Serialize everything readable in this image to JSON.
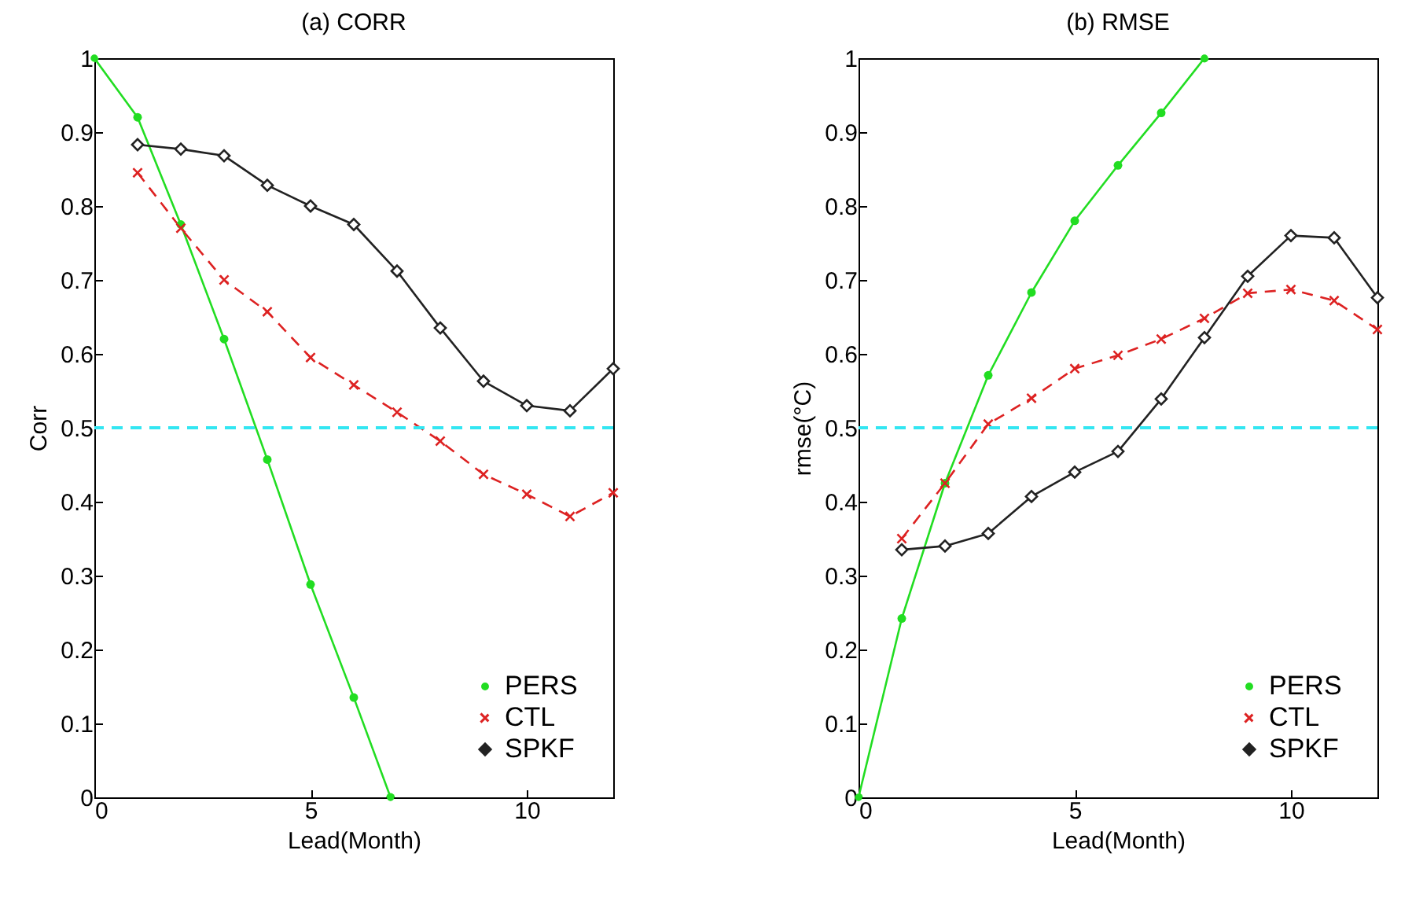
{
  "chart_data": [
    {
      "type": "line",
      "title": "(a) CORR",
      "xlabel": "Lead(Month)",
      "ylabel": "Corr",
      "x": [
        1,
        2,
        3,
        4,
        5,
        6,
        7,
        8,
        9,
        10,
        11,
        12
      ],
      "xlim": [
        0,
        12
      ],
      "xticks": [
        0,
        5,
        10
      ],
      "ylim": [
        0,
        1
      ],
      "yticks": [
        0,
        0.1,
        0.2,
        0.3,
        0.4,
        0.5,
        0.6,
        0.7,
        0.8,
        0.9,
        1
      ],
      "grid": false,
      "legend": "bottom right",
      "ref_lines": [
        {
          "axis": "y",
          "value": 0.5,
          "color": "#33e6f2",
          "line_style": "dashed"
        }
      ],
      "series": [
        {
          "name": "PERS",
          "color": "#22dd22",
          "marker": "circle",
          "line_style": "solid",
          "x": [
            0,
            1,
            2,
            3,
            4,
            5,
            6,
            6.85
          ],
          "values": [
            1,
            0.92,
            0.775,
            0.62,
            0.457,
            0.288,
            0.135,
            0
          ]
        },
        {
          "name": "CTL",
          "color": "#dd2222",
          "marker": "cross",
          "line_style": "dashed",
          "values": [
            0.845,
            0.77,
            0.7,
            0.657,
            0.595,
            0.558,
            0.521,
            0.482,
            0.437,
            0.41,
            0.38,
            0.412
          ]
        },
        {
          "name": "SPKF",
          "color": "#222222",
          "marker": "diamond",
          "line_style": "solid",
          "values": [
            0.883,
            0.877,
            0.868,
            0.828,
            0.8,
            0.775,
            0.712,
            0.635,
            0.563,
            0.53,
            0.523,
            0.58
          ]
        }
      ]
    },
    {
      "type": "line",
      "title": "(b) RMSE",
      "xlabel": "Lead(Month)",
      "ylabel": "rmse(°C)",
      "x": [
        1,
        2,
        3,
        4,
        5,
        6,
        7,
        8,
        9,
        10,
        11,
        12
      ],
      "xlim": [
        0,
        12
      ],
      "xticks": [
        0,
        5,
        10
      ],
      "ylim": [
        0,
        1
      ],
      "yticks": [
        0,
        0.1,
        0.2,
        0.3,
        0.4,
        0.5,
        0.6,
        0.7,
        0.8,
        0.9,
        1
      ],
      "grid": false,
      "legend": "bottom right",
      "ref_lines": [
        {
          "axis": "y",
          "value": 0.5,
          "color": "#33e6f2",
          "line_style": "dashed"
        }
      ],
      "series": [
        {
          "name": "PERS",
          "color": "#22dd22",
          "marker": "circle",
          "line_style": "solid",
          "x": [
            0,
            1,
            2,
            3,
            4,
            5,
            6,
            7,
            8
          ],
          "values": [
            0,
            0.242,
            0.425,
            0.571,
            0.683,
            0.78,
            0.855,
            0.926,
            1
          ]
        },
        {
          "name": "CTL",
          "color": "#dd2222",
          "marker": "cross",
          "line_style": "dashed",
          "values": [
            0.35,
            0.425,
            0.505,
            0.54,
            0.58,
            0.598,
            0.62,
            0.648,
            0.682,
            0.687,
            0.672,
            0.633
          ]
        },
        {
          "name": "SPKF",
          "color": "#222222",
          "marker": "diamond",
          "line_style": "solid",
          "values": [
            0.335,
            0.34,
            0.357,
            0.407,
            0.44,
            0.468,
            0.539,
            0.622,
            0.705,
            0.76,
            0.757,
            0.676
          ]
        }
      ]
    }
  ]
}
